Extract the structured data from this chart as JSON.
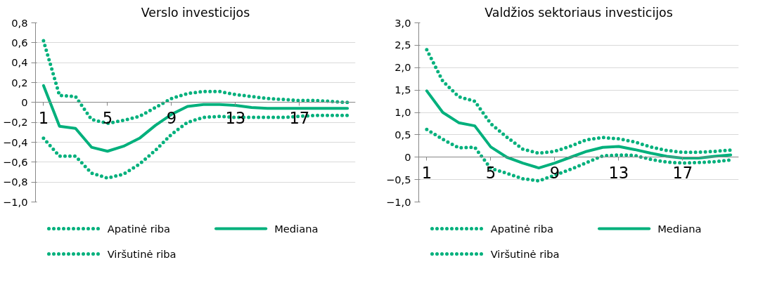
{
  "chart_data": [
    {
      "type": "line",
      "title": "Verslo investicijos",
      "x": [
        1,
        2,
        3,
        4,
        5,
        6,
        7,
        8,
        9,
        10,
        11,
        12,
        13,
        14,
        15,
        16,
        17,
        18,
        19,
        20
      ],
      "xlim": [
        0.5,
        20.5
      ],
      "xticks": [
        1,
        5,
        9,
        13,
        17
      ],
      "ylim": [
        -1.0,
        0.8
      ],
      "yticks": [
        {
          "value": -1.0,
          "label": "−1,0"
        },
        {
          "value": -0.8,
          "label": "−0,8"
        },
        {
          "value": -0.6,
          "label": "−0,6"
        },
        {
          "value": -0.4,
          "label": "−0,4"
        },
        {
          "value": -0.2,
          "label": "−0,2"
        },
        {
          "value": 0,
          "label": "0"
        },
        {
          "value": 0.2,
          "label": "0,2"
        },
        {
          "value": 0.4,
          "label": "0,4"
        },
        {
          "value": 0.6,
          "label": "0,6"
        },
        {
          "value": 0.8,
          "label": "0,8"
        }
      ],
      "grid": "y",
      "legend": "bottom",
      "series": [
        {
          "name": "Apatinė riba",
          "color": "#00b07c",
          "line_style": "dotted",
          "values": [
            -0.36,
            -0.54,
            -0.54,
            -0.71,
            -0.76,
            -0.72,
            -0.62,
            -0.48,
            -0.32,
            -0.2,
            -0.15,
            -0.14,
            -0.15,
            -0.15,
            -0.15,
            -0.15,
            -0.14,
            -0.13,
            -0.13,
            -0.13
          ]
        },
        {
          "name": "Mediana",
          "color": "#00b07c",
          "line_style": "solid",
          "values": [
            0.17,
            -0.24,
            -0.26,
            -0.45,
            -0.49,
            -0.44,
            -0.36,
            -0.23,
            -0.12,
            -0.04,
            -0.02,
            -0.02,
            -0.03,
            -0.05,
            -0.06,
            -0.06,
            -0.06,
            -0.06,
            -0.06,
            -0.06
          ]
        },
        {
          "name": "Viršutinė riba",
          "color": "#00b07c",
          "line_style": "dotted",
          "values": [
            0.62,
            0.07,
            0.06,
            -0.17,
            -0.21,
            -0.18,
            -0.14,
            -0.05,
            0.04,
            0.09,
            0.11,
            0.11,
            0.08,
            0.06,
            0.04,
            0.03,
            0.02,
            0.02,
            0.01,
            0.0
          ]
        }
      ]
    },
    {
      "type": "line",
      "title": "Valdžios sektoriaus investicijos",
      "x": [
        1,
        2,
        3,
        4,
        5,
        6,
        7,
        8,
        9,
        10,
        11,
        12,
        13,
        14,
        15,
        16,
        17,
        18,
        19,
        20
      ],
      "xlim": [
        0.5,
        20.5
      ],
      "xticks": [
        1,
        5,
        9,
        13,
        17
      ],
      "ylim": [
        -1.0,
        3.0
      ],
      "yticks": [
        {
          "value": -1.0,
          "label": "−1,0"
        },
        {
          "value": -0.5,
          "label": "−0,5"
        },
        {
          "value": 0,
          "label": "0"
        },
        {
          "value": 0.5,
          "label": "0,5"
        },
        {
          "value": 1.0,
          "label": "1,0"
        },
        {
          "value": 1.5,
          "label": "1,5"
        },
        {
          "value": 2.0,
          "label": "2,0"
        },
        {
          "value": 2.5,
          "label": "2,5"
        },
        {
          "value": 3.0,
          "label": "3,0"
        }
      ],
      "grid": "y",
      "legend": "bottom",
      "series": [
        {
          "name": "Apatinė riba",
          "color": "#00b07c",
          "line_style": "dotted",
          "values": [
            0.62,
            0.4,
            0.21,
            0.22,
            -0.25,
            -0.36,
            -0.48,
            -0.53,
            -0.4,
            -0.27,
            -0.12,
            0.03,
            0.05,
            0.04,
            -0.05,
            -0.11,
            -0.13,
            -0.12,
            -0.1,
            -0.06
          ]
        },
        {
          "name": "Mediana",
          "color": "#00b07c",
          "line_style": "solid",
          "values": [
            1.48,
            1.0,
            0.77,
            0.7,
            0.23,
            0.0,
            -0.13,
            -0.24,
            -0.13,
            0.0,
            0.13,
            0.22,
            0.24,
            0.17,
            0.09,
            0.02,
            -0.02,
            -0.02,
            0.02,
            0.05
          ]
        },
        {
          "name": "Viršutinė riba",
          "color": "#00b07c",
          "line_style": "dotted",
          "values": [
            2.4,
            1.7,
            1.35,
            1.25,
            0.75,
            0.45,
            0.18,
            0.09,
            0.13,
            0.25,
            0.39,
            0.44,
            0.41,
            0.34,
            0.23,
            0.15,
            0.11,
            0.11,
            0.13,
            0.16
          ]
        }
      ]
    }
  ]
}
